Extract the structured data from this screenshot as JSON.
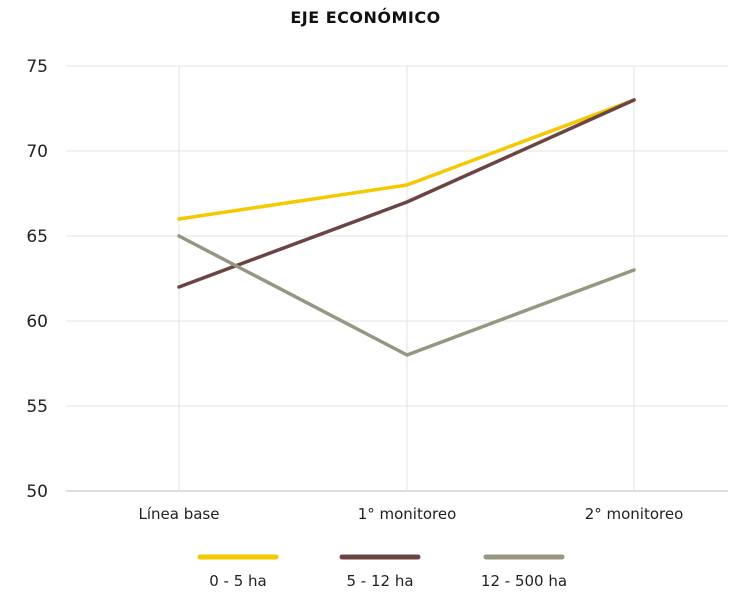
{
  "chart_data": {
    "type": "line",
    "title": "EJE ECONÓMICO",
    "xlabel": "",
    "ylabel": "",
    "categories": [
      "Línea base",
      "1° monitoreo",
      "2° monitoreo"
    ],
    "ylim": [
      50,
      75
    ],
    "yticks": [
      50,
      55,
      60,
      65,
      70,
      75
    ],
    "grid": true,
    "legend_position": "bottom",
    "series": [
      {
        "name": "0 - 5 ha",
        "values": [
          66,
          68,
          73
        ],
        "color": "#F5C800"
      },
      {
        "name": "5 - 12 ha",
        "values": [
          62,
          67,
          73
        ],
        "color": "#6B4444"
      },
      {
        "name": "12 - 500 ha",
        "values": [
          65,
          58,
          63
        ],
        "color": "#969682"
      }
    ]
  }
}
